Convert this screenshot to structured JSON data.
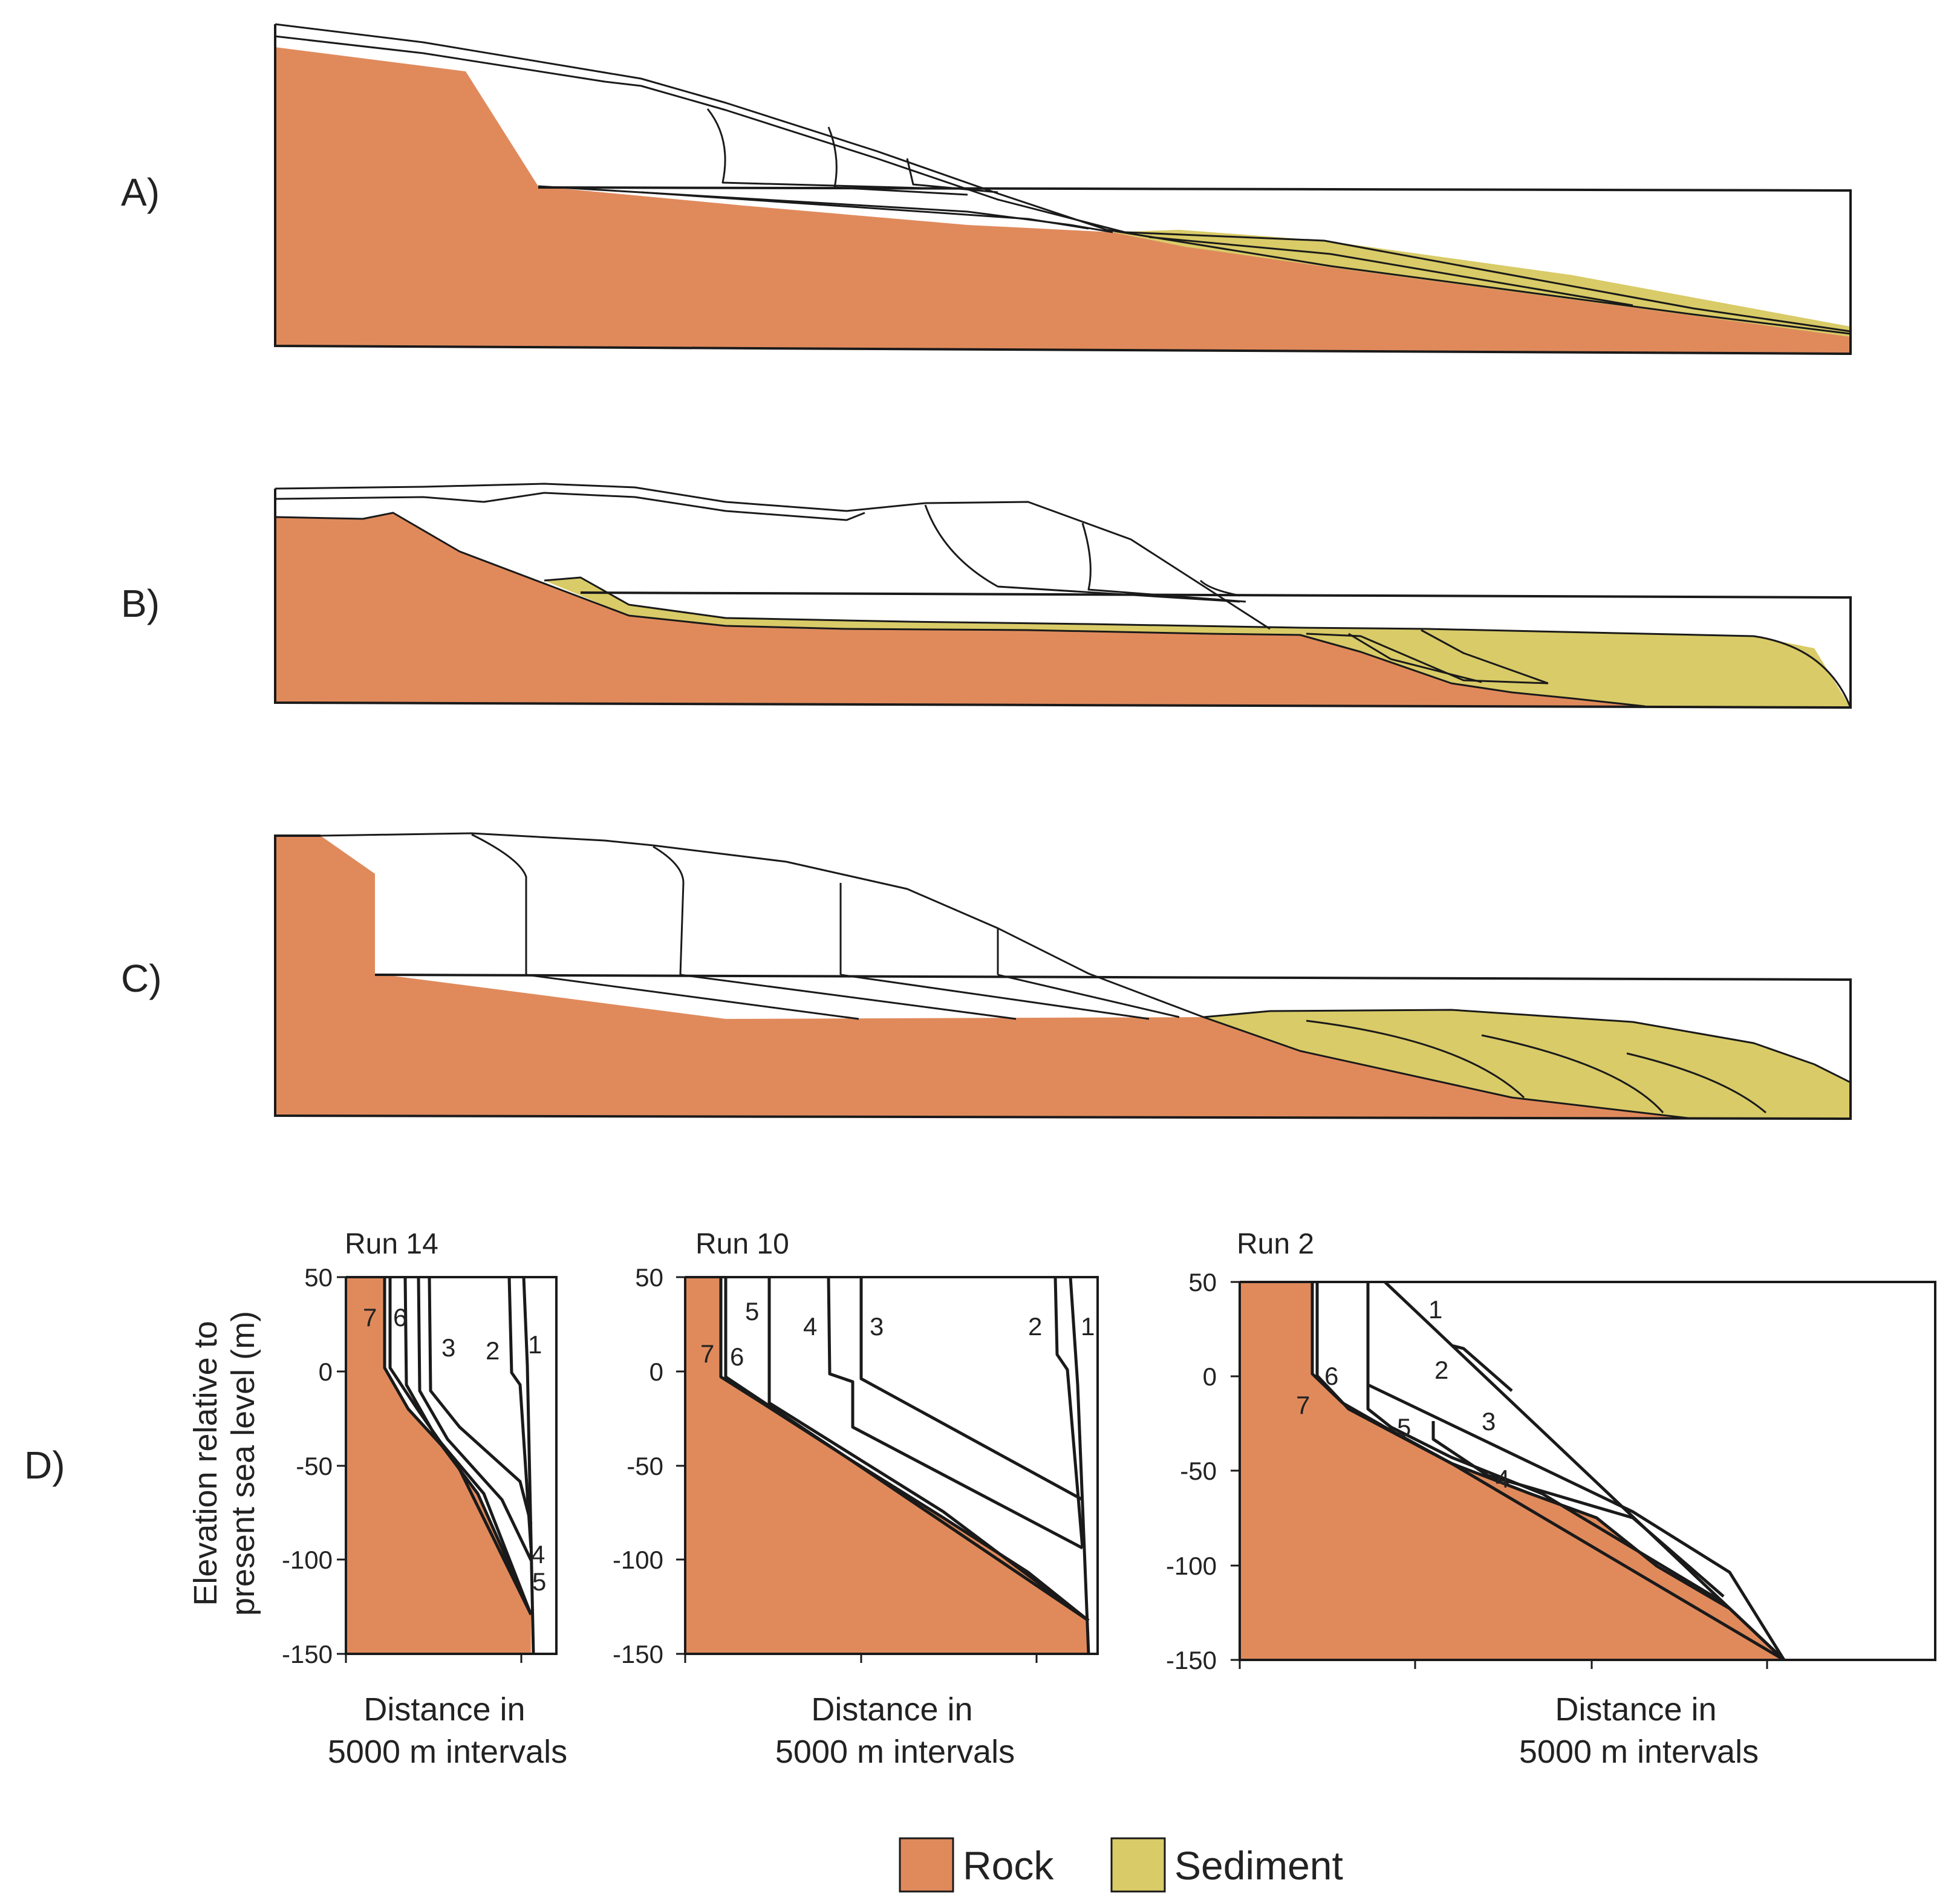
{
  "colors": {
    "rock": "#E08A5C",
    "sediment": "#D9CB67",
    "line": "#1a1a1a",
    "background": "#ffffff"
  },
  "panels": {
    "a": {
      "label": "A)"
    },
    "b": {
      "label": "B)"
    },
    "c": {
      "label": "C)"
    },
    "d": {
      "label": "D)"
    }
  },
  "panel_d": {
    "y_axis_title_line1": "Elevation relative to",
    "y_axis_title_line2": "present sea level (m)",
    "y_ticks": [
      "50",
      "0",
      "-50",
      "-100",
      "-150"
    ],
    "x_label_line1": "Distance in",
    "x_label_line2": "5000 m intervals",
    "runs": [
      {
        "title": "Run 14",
        "curve_labels": [
          "1",
          "2",
          "3",
          "4",
          "5",
          "6",
          "7"
        ]
      },
      {
        "title": "Run 10",
        "curve_labels": [
          "1",
          "2",
          "3",
          "4",
          "5",
          "6",
          "7"
        ]
      },
      {
        "title": "Run 2",
        "curve_labels": [
          "1",
          "2",
          "3",
          "4",
          "5",
          "6",
          "7"
        ]
      }
    ]
  },
  "legend": [
    {
      "label": "Rock",
      "color": "#E08A5C"
    },
    {
      "label": "Sediment",
      "color": "#D9CB67"
    }
  ]
}
